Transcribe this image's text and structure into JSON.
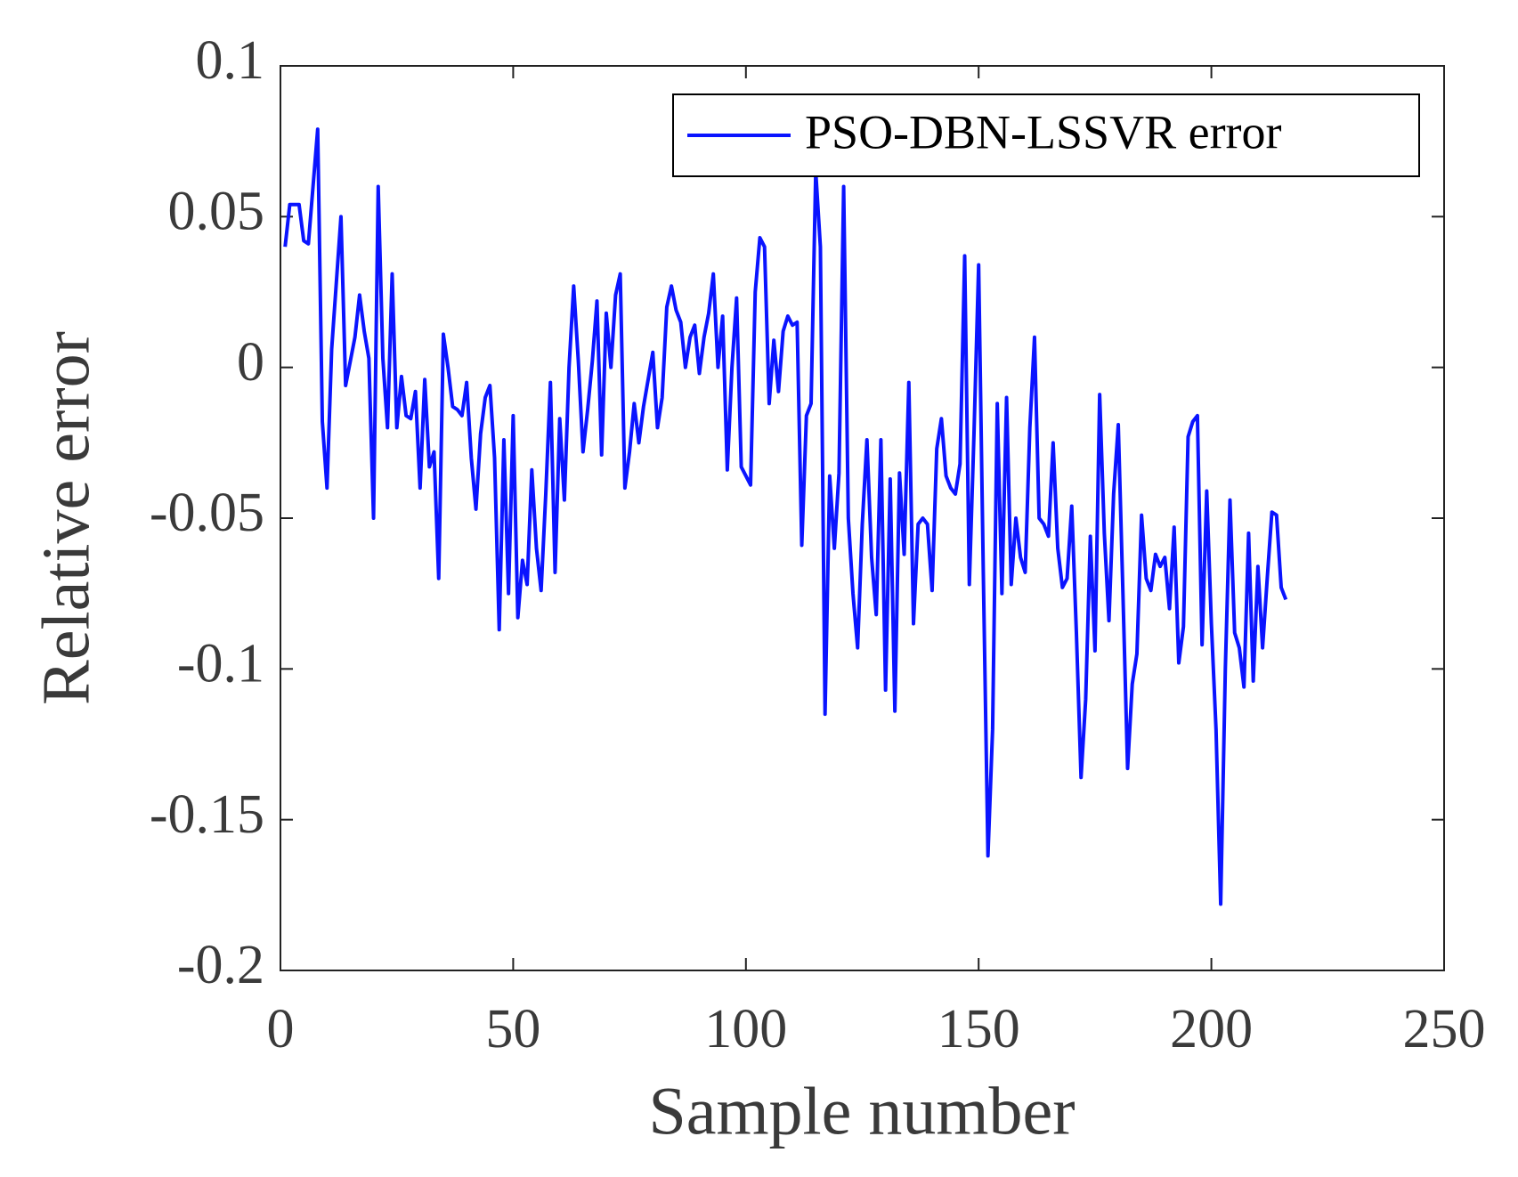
{
  "chart_data": {
    "type": "line",
    "xlabel": "Sample number",
    "ylabel": "Relative error",
    "xlim": [
      0,
      250
    ],
    "xticks": [
      0,
      50,
      100,
      150,
      200,
      250
    ],
    "ylim": [
      -0.2,
      0.1
    ],
    "yticks": [
      0.1,
      0.05,
      0,
      -0.05,
      -0.1,
      -0.15,
      -0.2
    ],
    "legend": "upper right",
    "grid": false,
    "x": [
      1,
      2,
      3,
      4,
      5,
      6,
      7,
      8,
      9,
      10,
      11,
      12,
      13,
      14,
      15,
      16,
      17,
      18,
      19,
      20,
      21,
      22,
      23,
      24,
      25,
      26,
      27,
      28,
      29,
      30,
      31,
      32,
      33,
      34,
      35,
      36,
      37,
      38,
      39,
      40,
      41,
      42,
      43,
      44,
      45,
      46,
      47,
      48,
      49,
      50,
      51,
      52,
      53,
      54,
      55,
      56,
      57,
      58,
      59,
      60,
      61,
      62,
      63,
      64,
      65,
      66,
      67,
      68,
      69,
      70,
      71,
      72,
      73,
      74,
      75,
      76,
      77,
      78,
      79,
      80,
      81,
      82,
      83,
      84,
      85,
      86,
      87,
      88,
      89,
      90,
      91,
      92,
      93,
      94,
      95,
      96,
      97,
      98,
      99,
      100,
      101,
      102,
      103,
      104,
      105,
      106,
      107,
      108,
      109,
      110,
      111,
      112,
      113,
      114,
      115,
      116,
      117,
      118,
      119,
      120,
      121,
      122,
      123,
      124,
      125,
      126,
      127,
      128,
      129,
      130,
      131,
      132,
      133,
      134,
      135,
      136,
      137,
      138,
      139,
      140,
      141,
      142,
      143,
      144,
      145,
      146,
      147,
      148,
      149,
      150,
      151,
      152,
      153,
      154,
      155,
      156,
      157,
      158,
      159,
      160,
      161,
      162,
      163,
      164,
      165,
      166,
      167,
      168,
      169,
      170,
      171,
      172,
      173,
      174,
      175,
      176,
      177,
      178,
      179,
      180,
      181,
      182,
      183,
      184,
      185,
      186,
      187,
      188,
      189,
      190,
      191,
      192,
      193,
      194,
      195,
      196,
      197,
      198,
      199,
      200,
      201,
      202,
      203,
      204,
      205,
      206,
      207,
      208,
      209,
      210,
      211,
      212,
      213,
      214,
      215,
      216
    ],
    "series": [
      {
        "name": "PSO-DBN-LSSVR error",
        "color": "#0a14ff",
        "values": [
          0.04,
          0.054,
          0.054,
          0.054,
          0.042,
          0.041,
          0.06,
          0.079,
          -0.018,
          -0.04,
          0.006,
          0.028,
          0.05,
          -0.006,
          0.002,
          0.01,
          0.024,
          0.012,
          0.003,
          -0.05,
          0.06,
          0.003,
          -0.02,
          0.031,
          -0.02,
          -0.003,
          -0.016,
          -0.017,
          -0.008,
          -0.04,
          -0.004,
          -0.033,
          -0.028,
          -0.07,
          0.011,
          0.0,
          -0.013,
          -0.014,
          -0.016,
          -0.005,
          -0.03,
          -0.047,
          -0.022,
          -0.01,
          -0.006,
          -0.03,
          -0.087,
          -0.024,
          -0.075,
          -0.016,
          -0.083,
          -0.064,
          -0.072,
          -0.034,
          -0.06,
          -0.074,
          -0.042,
          -0.005,
          -0.068,
          -0.017,
          -0.044,
          0.0,
          0.027,
          0.002,
          -0.028,
          -0.014,
          0.002,
          0.022,
          -0.029,
          0.018,
          0.0,
          0.024,
          0.031,
          -0.04,
          -0.028,
          -0.012,
          -0.025,
          -0.013,
          -0.004,
          0.005,
          -0.02,
          -0.01,
          0.02,
          0.027,
          0.019,
          0.015,
          0.0,
          0.01,
          0.014,
          -0.002,
          0.01,
          0.018,
          0.031,
          0.0,
          0.017,
          -0.034,
          0.0,
          0.023,
          -0.033,
          -0.036,
          -0.039,
          0.025,
          0.043,
          0.04,
          -0.012,
          0.009,
          -0.008,
          0.012,
          0.017,
          0.014,
          0.015,
          -0.059,
          -0.016,
          -0.012,
          0.065,
          0.04,
          -0.115,
          -0.036,
          -0.06,
          -0.035,
          0.06,
          -0.05,
          -0.075,
          -0.093,
          -0.052,
          -0.024,
          -0.063,
          -0.082,
          -0.024,
          -0.107,
          -0.037,
          -0.114,
          -0.035,
          -0.062,
          -0.005,
          -0.085,
          -0.052,
          -0.05,
          -0.052,
          -0.074,
          -0.027,
          -0.017,
          -0.036,
          -0.04,
          -0.042,
          -0.032,
          0.037,
          -0.072,
          -0.022,
          0.034,
          -0.068,
          -0.162,
          -0.12,
          -0.012,
          -0.075,
          -0.01,
          -0.072,
          -0.05,
          -0.063,
          -0.068,
          -0.02,
          0.01,
          -0.05,
          -0.052,
          -0.056,
          -0.025,
          -0.06,
          -0.073,
          -0.07,
          -0.046,
          -0.088,
          -0.136,
          -0.11,
          -0.056,
          -0.094,
          -0.009,
          -0.055,
          -0.084,
          -0.042,
          -0.019,
          -0.075,
          -0.133,
          -0.105,
          -0.095,
          -0.049,
          -0.07,
          -0.074,
          -0.062,
          -0.066,
          -0.063,
          -0.08,
          -0.053,
          -0.098,
          -0.086,
          -0.023,
          -0.018,
          -0.016,
          -0.092,
          -0.041,
          -0.085,
          -0.12,
          -0.178,
          -0.1,
          -0.044,
          -0.088,
          -0.093,
          -0.106,
          -0.055,
          -0.104,
          -0.066,
          -0.093,
          -0.07,
          -0.048,
          -0.049,
          -0.073,
          -0.077
        ]
      }
    ]
  }
}
